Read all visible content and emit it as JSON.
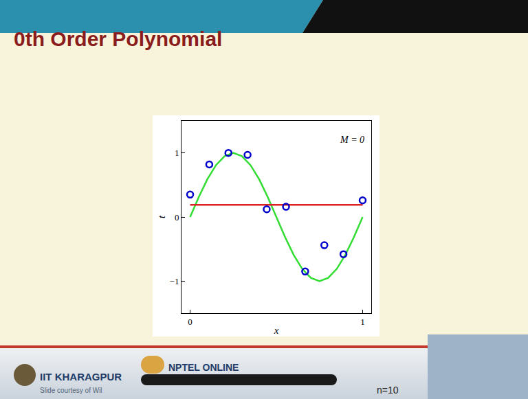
{
  "slide": {
    "title": "0th Order Polynomial",
    "footer": {
      "institute": "IIT KHARAGPUR",
      "program": "NPTEL ONLINE",
      "courtesy": "Slide courtesy of Wil",
      "page_note": "n=10"
    }
  },
  "chart_data": {
    "type": "scatter",
    "x_label": "x",
    "y_label": "t",
    "annotation": "M = 0",
    "xlim": [
      -0.05,
      1.05
    ],
    "xticks": [
      0,
      1
    ],
    "ylim": [
      -1.5,
      1.5
    ],
    "yticks": [
      -1,
      0,
      1
    ],
    "grid": false,
    "series": [
      {
        "type": "line",
        "color": "#33dd33",
        "line_style": "solid",
        "x": [
          0,
          0.05,
          0.1,
          0.15,
          0.2,
          0.25,
          0.3,
          0.35,
          0.4,
          0.45,
          0.5,
          0.55,
          0.6,
          0.65,
          0.7,
          0.75,
          0.8,
          0.85,
          0.9,
          0.95,
          1
        ],
        "values": [
          0,
          0.31,
          0.59,
          0.81,
          0.95,
          1,
          0.95,
          0.81,
          0.59,
          0.31,
          0,
          -0.31,
          -0.59,
          -0.81,
          -0.95,
          -1,
          -0.95,
          -0.81,
          -0.59,
          -0.31,
          0
        ]
      },
      {
        "type": "line",
        "color": "#dd2222",
        "line_style": "solid",
        "x": [
          0,
          1
        ],
        "values": [
          0.19,
          0.19
        ]
      },
      {
        "type": "scatter",
        "color": "#0000cc",
        "marker": "open circle",
        "x": [
          0,
          0.111,
          0.222,
          0.333,
          0.444,
          0.556,
          0.667,
          0.778,
          0.889,
          1
        ],
        "values": [
          0.35,
          0.82,
          1.0,
          0.97,
          0.12,
          0.16,
          -0.85,
          -0.44,
          -0.58,
          0.26
        ]
      }
    ]
  }
}
